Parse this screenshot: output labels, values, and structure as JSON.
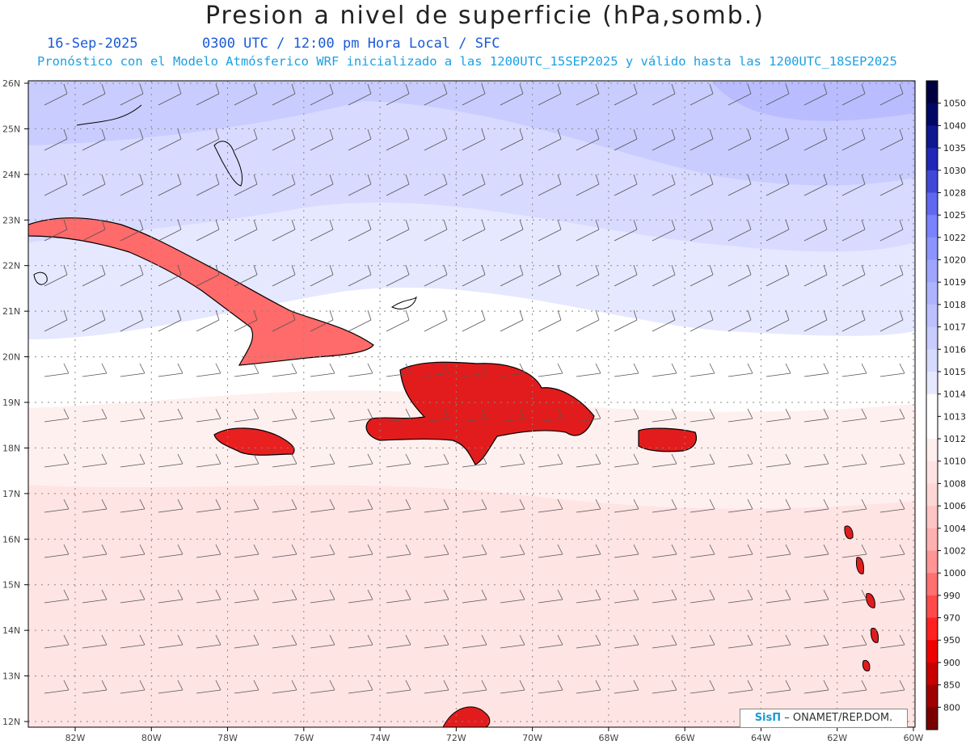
{
  "title": "Presion a nivel de superficie (hPa,somb.)",
  "date": "16-Sep-2025",
  "time_line": "0300 UTC / 12:00 pm Hora Local / SFC",
  "model_line": "Pronóstico con el Modelo Atmósferico WRF inicializado a las 1200UTC_15SEP2025 y válido hasta las  1200UTC_18SEP2025",
  "credit": {
    "brand": "SisΠ",
    "org": "– ONAMET/REP.DOM."
  },
  "lat_labels": [
    "26N",
    "25N",
    "24N",
    "23N",
    "22N",
    "21N",
    "20N",
    "19N",
    "18N",
    "17N",
    "16N",
    "15N",
    "14N",
    "13N",
    "12N"
  ],
  "lon_labels": [
    "82W",
    "80W",
    "78W",
    "76W",
    "74W",
    "72W",
    "70W",
    "68W",
    "66W",
    "64W",
    "62W",
    "60W"
  ],
  "colorbar": {
    "levels": [
      "800",
      "850",
      "900",
      "950",
      "970",
      "990",
      "1000",
      "1002",
      "1004",
      "1006",
      "1008",
      "1010",
      "1012",
      "1013",
      "1014",
      "1015",
      "1016",
      "1017",
      "1018",
      "1019",
      "1020",
      "1022",
      "1025",
      "1028",
      "1030",
      "1035",
      "1040",
      "1050"
    ],
    "colors": [
      "#7a0000",
      "#a00000",
      "#c80000",
      "#ee0000",
      "#ff2020",
      "#ff4a4a",
      "#ff7070",
      "#ff9595",
      "#ffb0b0",
      "#ffc5c5",
      "#ffd6d6",
      "#ffe3e3",
      "#ffeeee",
      "#ffffff",
      "#ffffff",
      "#e6e8ff",
      "#d6daff",
      "#c8ccff",
      "#bcc0ff",
      "#aeb3ff",
      "#9fa5ff",
      "#8d94ff",
      "#7a82ff",
      "#6068f0",
      "#4048d8",
      "#2028b8",
      "#101890",
      "#000866",
      "#000040"
    ]
  },
  "map_colors": {
    "band_1017": "#c9ccff",
    "band_1016": "#d8dbff",
    "band_1015": "#e6e8ff",
    "band_1014": "#ffffff",
    "band_1013": "#fff0f0",
    "band_1012": "#ffe4e4",
    "band_1018": "#b9bdff",
    "land_low": "#e02020"
  }
}
